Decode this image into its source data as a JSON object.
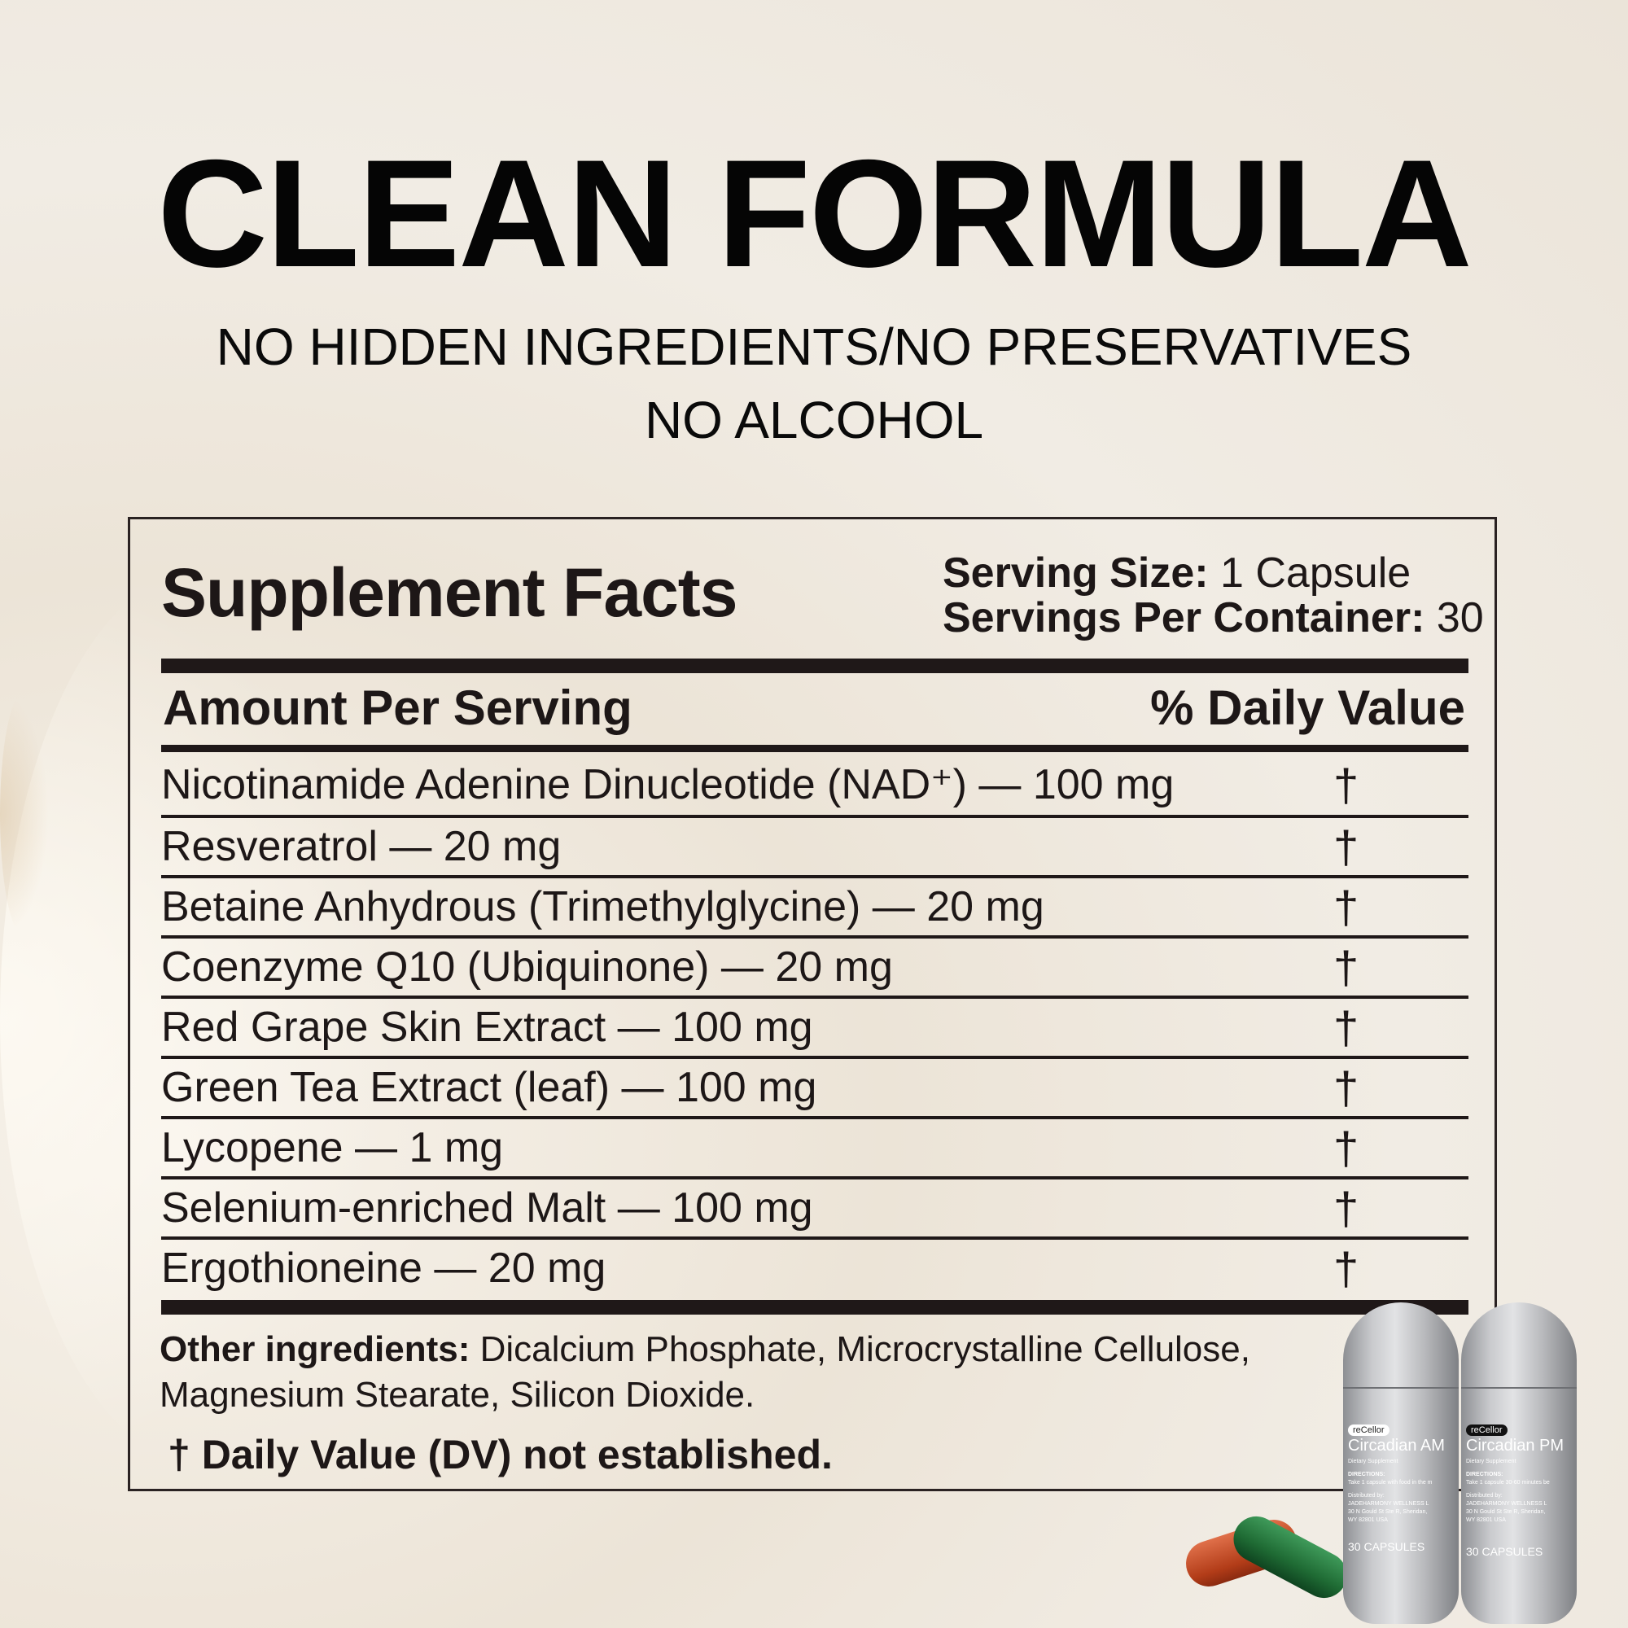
{
  "header": {
    "title": "CLEAN FORMULA",
    "subtitle_line1": "NO HIDDEN INGREDIENTS/NO PRESERVATIVES",
    "subtitle_line2": "NO ALCOHOL"
  },
  "facts": {
    "title": "Supplement Facts",
    "serving_size_label": "Serving Size:",
    "serving_size_value": "1 Capsule",
    "servings_label": "Servings Per Container:",
    "servings_value": "30",
    "amount_header": "Amount Per Serving",
    "dv_header": "% Daily Value",
    "rows": [
      {
        "name": "Nicotinamide Adenine Dinucleotide (NAD⁺) — 100 mg",
        "dv": "†"
      },
      {
        "name": "Resveratrol — 20 mg",
        "dv": "†"
      },
      {
        "name": "Betaine Anhydrous (Trimethylglycine) — 20 mg",
        "dv": "†"
      },
      {
        "name": "Coenzyme Q10 (Ubiquinone) — 20 mg",
        "dv": "†"
      },
      {
        "name": "Red Grape Skin Extract — 100 mg",
        "dv": "†"
      },
      {
        "name": "Green Tea Extract (leaf) — 100 mg",
        "dv": "†"
      },
      {
        "name": "Lycopene — 1 mg",
        "dv": "†"
      },
      {
        "name": "Selenium-enriched Malt — 100 mg",
        "dv": "†"
      },
      {
        "name": "Ergothioneine — 20 mg",
        "dv": "†"
      }
    ],
    "other_label": "Other ingredients:",
    "other_line1": "Dicalcium Phosphate, Microcrystalline Cellulose,",
    "other_line2": "Magnesium Stearate, Silicon Dioxide.",
    "dv_note": "† Daily Value (DV) not established."
  },
  "bottles": [
    {
      "brand": "reCellor",
      "name": "Circadian AM",
      "type": "Dietary Supplement",
      "directions_label": "DIRECTIONS:",
      "directions": "Take 1 capsule with food in the m",
      "distributor_label": "Distributed by:",
      "distributor": "JADEHARMONY WELLNESS L",
      "address1": "30 N Gould St Ste R, Sheridan,",
      "address2": "WY 82801 USA",
      "count": "30 CAPSULES",
      "logo_bg": "#ffffff",
      "logo_fg": "#222222"
    },
    {
      "brand": "reCellor",
      "name": "Circadian PM",
      "type": "Dietary Supplement",
      "directions_label": "DIRECTIONS:",
      "directions": "Take 1 capsule 30-60 minutes be",
      "distributor_label": "Distributed by:",
      "distributor": "JADEHARMONY WELLNESS L",
      "address1": "30 N Gould St Ste R, Sheridan,",
      "address2": "WY 82801 USA",
      "count": "30 CAPSULES",
      "logo_bg": "#111111",
      "logo_fg": "#ffffff"
    }
  ],
  "colors": {
    "background": "#efe9e0",
    "text": "#1d1717",
    "capsule_orange": "#c4461f",
    "capsule_green": "#1f6b34"
  }
}
